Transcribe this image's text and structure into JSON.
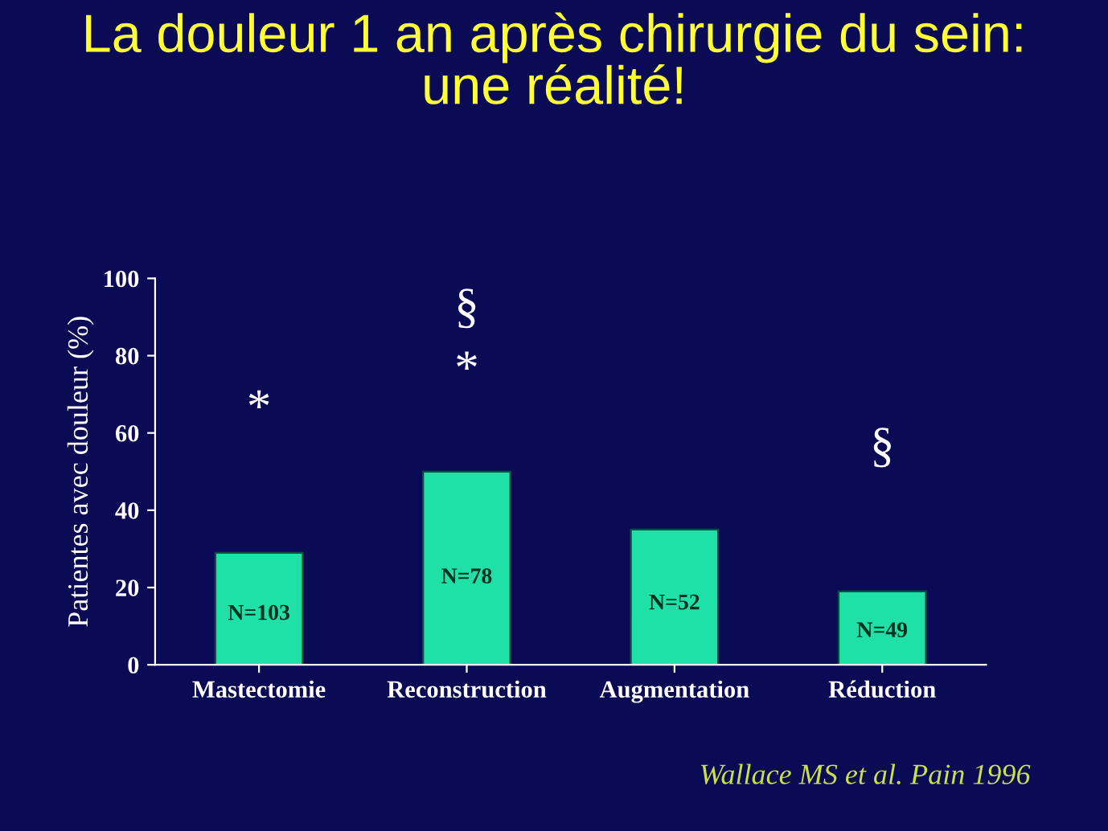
{
  "chart_data": {
    "type": "bar",
    "title": "La douleur 1 an après chirurgie du sein:\nune réalité!",
    "ylabel": "Patientes avec douleur (%)",
    "categories": [
      "Mastectomie",
      "Reconstruction",
      "Augmentation",
      "Réduction"
    ],
    "values": [
      29,
      50,
      35,
      19
    ],
    "color": "#1fe0a6",
    "ylim": [
      0,
      100
    ],
    "yticks": [
      0,
      20,
      40,
      60,
      80,
      100
    ],
    "grid": false,
    "legend": false,
    "annotations": [
      "N=103",
      "N=78",
      "N=52",
      "N=49",
      "*",
      "*",
      "§",
      "§",
      "Wallace MS et al. Pain 1996"
    ]
  }
}
